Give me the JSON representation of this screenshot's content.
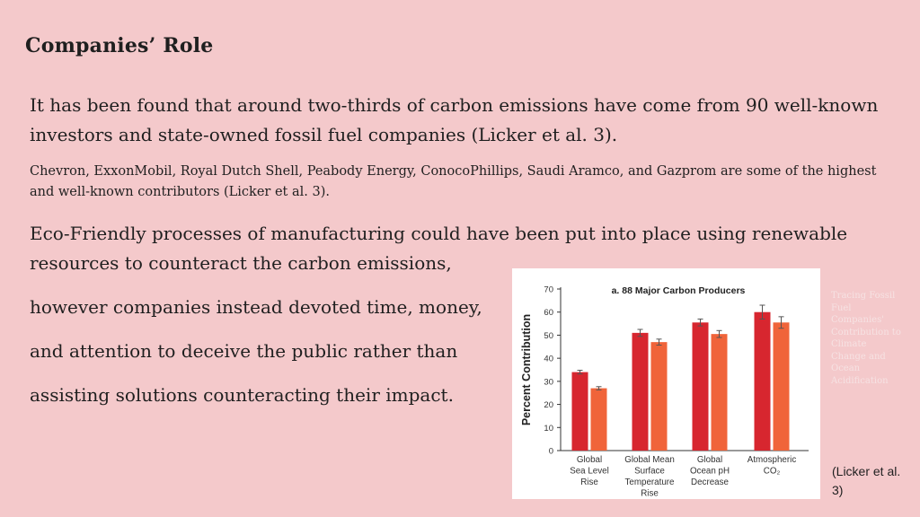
{
  "slide": {
    "title": "Companies’ Role",
    "paragraph1": "It has been found that around two-thirds of carbon emissions have come from 90 well-known investors and state-owned fossil fuel companies (Licker et al. 3).",
    "paragraph2": "Chevron, ExxonMobil, Royal Dutch Shell, Peabody Energy, ConocoPhillips, Saudi Aramco, and Gazprom are some of the highest and well-known contributors (Licker et al. 3).",
    "paragraph3": "Eco-Friendly processes of manufacturing could have been put into place using renewable resources to counteract the carbon emissions,",
    "line4": " however companies instead devoted time, money,",
    "line5": "and attention to deceive the public rather than",
    "line6": "assisting solutions counteracting their impact.",
    "figure_caption": "Tracing Fossil Fuel Companies' Contribution to Climate Change and Ocean Acidification",
    "citation": "(Licker et al. 3)"
  },
  "colors": {
    "background": "#f4c9cb",
    "series_red": "#d7262f",
    "series_orange": "#f0643a"
  },
  "chart_data": {
    "type": "bar",
    "title": "a. 88 Major Carbon Producers",
    "ylabel": "Percent Contribution",
    "xlabel": "",
    "ylim": [
      0,
      70
    ],
    "yticks": [
      0,
      10,
      20,
      30,
      40,
      50,
      60,
      70
    ],
    "grid": false,
    "categories": [
      [
        "Global",
        "Sea Level",
        "Rise"
      ],
      [
        "Global Mean",
        "Surface",
        "Temperature",
        "Rise"
      ],
      [
        "Global",
        "Ocean pH",
        "Decrease"
      ],
      [
        "Atmospheric",
        "CO₂"
      ]
    ],
    "series": [
      {
        "color": "#d7262f",
        "values": [
          34,
          51,
          55.5,
          60
        ],
        "errors": [
          0.8,
          1.5,
          1.5,
          3.0
        ]
      },
      {
        "color": "#f0643a",
        "values": [
          27,
          47,
          50.5,
          55.5
        ],
        "errors": [
          0.7,
          1.3,
          1.5,
          2.5
        ]
      }
    ]
  }
}
